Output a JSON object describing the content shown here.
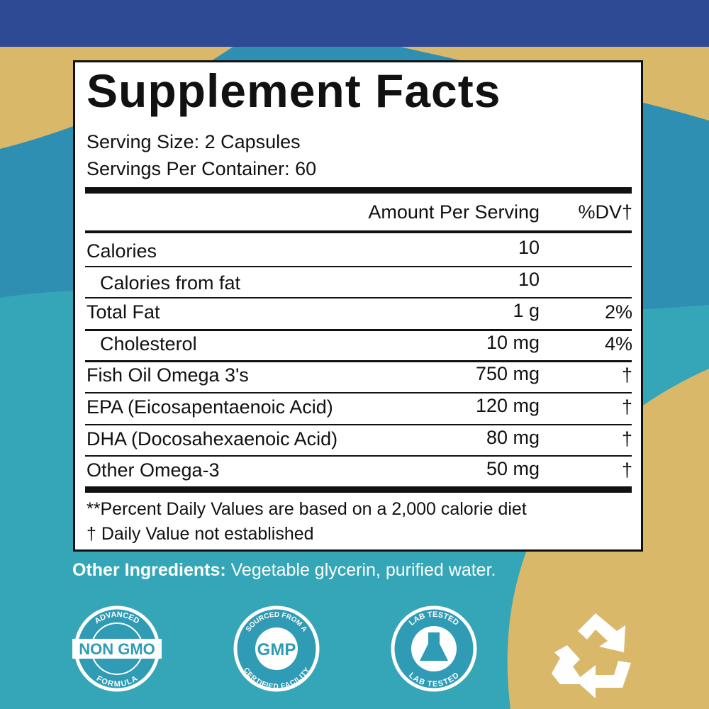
{
  "title": "Supplement Facts",
  "serving_size": "Serving Size: 2 Capsules",
  "servings_per_container": "Servings Per Container: 60",
  "header": {
    "amount": "Amount Per Serving",
    "dv": "%DV†"
  },
  "rows": [
    {
      "name": "Calories",
      "amount": "10"
    },
    {
      "name": "Calories from fat",
      "amount": "10",
      "indent": true
    },
    {
      "name": "Total Fat",
      "amount": "1 g",
      "dv": "2%"
    },
    {
      "name": "Cholesterol",
      "amount": "10 mg",
      "dv": "4%",
      "indent": true
    },
    {
      "name": "Fish Oil Omega 3's",
      "amount": "750 mg",
      "dv": "†"
    },
    {
      "name": "EPA (Eicosapentaenoic Acid)",
      "amount": "120 mg",
      "dv": "†"
    },
    {
      "name": "DHA (Docosahexaenoic Acid)",
      "amount": "80 mg",
      "dv": "†"
    },
    {
      "name": "Other Omega-3",
      "amount": "50 mg",
      "dv": "†"
    }
  ],
  "footnotes": [
    "**Percent Daily Values are based on a 2,000 calorie diet",
    "† Daily Value not established"
  ],
  "other_ingredients": {
    "label": "Other Ingredients:",
    "text": "Vegetable glycerin, purified water."
  },
  "badges": [
    {
      "top": "ADVANCED",
      "center": "NON GMO",
      "bottom": "FORMULA"
    },
    {
      "top": "SOURCED FROM A",
      "center": "GMP",
      "bottom": "CERTIFIED FACILITY"
    },
    {
      "top": "LAB TESTED",
      "bottom": "LAB TESTED"
    }
  ]
}
